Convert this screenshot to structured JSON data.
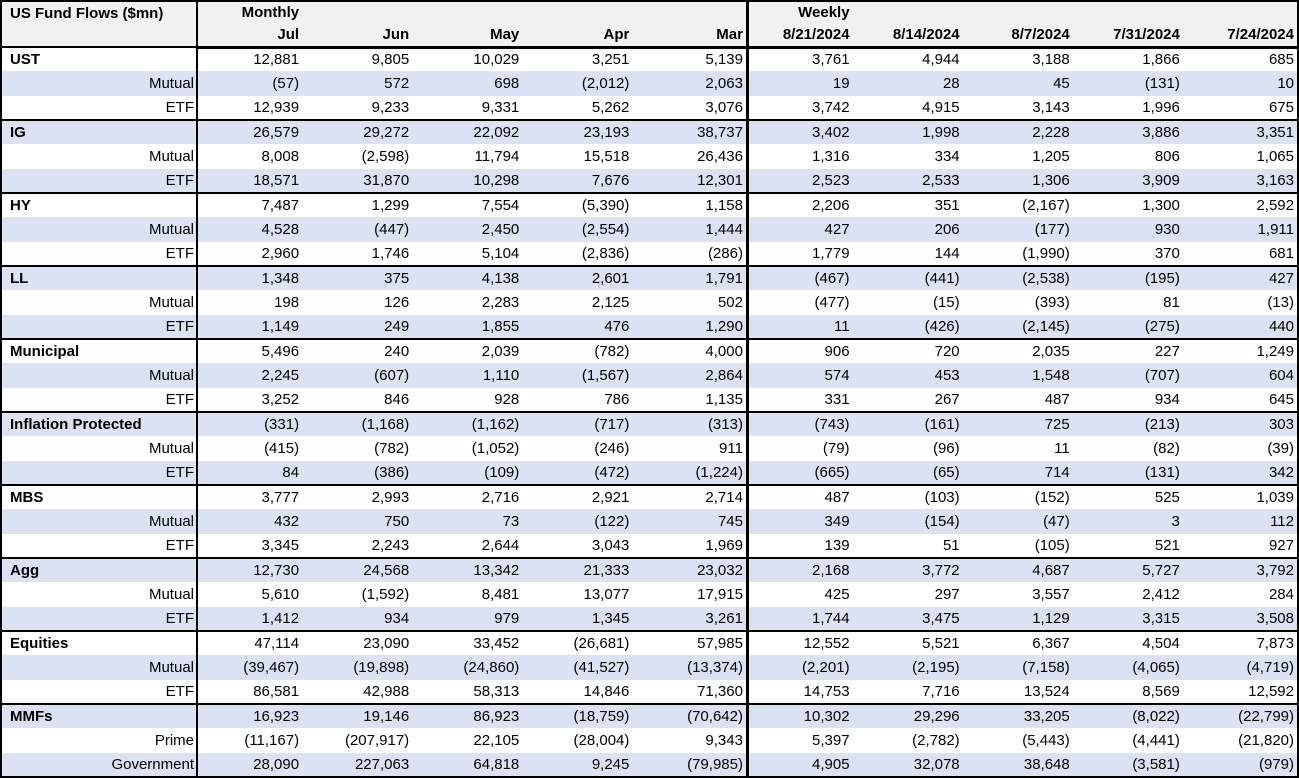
{
  "chart_data": {
    "type": "table",
    "title": "US Fund Flows ($mn)",
    "sections": [
      {
        "label": "Monthly",
        "columns": [
          "Jul",
          "Jun",
          "May",
          "Apr",
          "Mar"
        ]
      },
      {
        "label": "Weekly",
        "columns": [
          "8/21/2024",
          "8/14/2024",
          "8/7/2024",
          "7/31/2024",
          "7/24/2024"
        ]
      }
    ],
    "groups": [
      {
        "name": "UST",
        "rows": [
          {
            "label": "UST",
            "is_group_header": true,
            "monthly": [
              "12,881",
              "9,805",
              "10,029",
              "3,251",
              "5,139"
            ],
            "weekly": [
              "3,761",
              "4,944",
              "3,188",
              "1,866",
              "685"
            ]
          },
          {
            "label": "Mutual",
            "monthly": [
              "(57)",
              "572",
              "698",
              "(2,012)",
              "2,063"
            ],
            "weekly": [
              "19",
              "28",
              "45",
              "(131)",
              "10"
            ]
          },
          {
            "label": "ETF",
            "monthly": [
              "12,939",
              "9,233",
              "9,331",
              "5,262",
              "3,076"
            ],
            "weekly": [
              "3,742",
              "4,915",
              "3,143",
              "1,996",
              "675"
            ]
          }
        ]
      },
      {
        "name": "IG",
        "rows": [
          {
            "label": "IG",
            "is_group_header": true,
            "monthly": [
              "26,579",
              "29,272",
              "22,092",
              "23,193",
              "38,737"
            ],
            "weekly": [
              "3,402",
              "1,998",
              "2,228",
              "3,886",
              "3,351"
            ]
          },
          {
            "label": "Mutual",
            "monthly": [
              "8,008",
              "(2,598)",
              "11,794",
              "15,518",
              "26,436"
            ],
            "weekly": [
              "1,316",
              "334",
              "1,205",
              "806",
              "1,065"
            ]
          },
          {
            "label": "ETF",
            "monthly": [
              "18,571",
              "31,870",
              "10,298",
              "7,676",
              "12,301"
            ],
            "weekly": [
              "2,523",
              "2,533",
              "1,306",
              "3,909",
              "3,163"
            ]
          }
        ]
      },
      {
        "name": "HY",
        "rows": [
          {
            "label": "HY",
            "is_group_header": true,
            "monthly": [
              "7,487",
              "1,299",
              "7,554",
              "(5,390)",
              "1,158"
            ],
            "weekly": [
              "2,206",
              "351",
              "(2,167)",
              "1,300",
              "2,592"
            ]
          },
          {
            "label": "Mutual",
            "monthly": [
              "4,528",
              "(447)",
              "2,450",
              "(2,554)",
              "1,444"
            ],
            "weekly": [
              "427",
              "206",
              "(177)",
              "930",
              "1,911"
            ]
          },
          {
            "label": "ETF",
            "monthly": [
              "2,960",
              "1,746",
              "5,104",
              "(2,836)",
              "(286)"
            ],
            "weekly": [
              "1,779",
              "144",
              "(1,990)",
              "370",
              "681"
            ]
          }
        ]
      },
      {
        "name": "LL",
        "rows": [
          {
            "label": "LL",
            "is_group_header": true,
            "monthly": [
              "1,348",
              "375",
              "4,138",
              "2,601",
              "1,791"
            ],
            "weekly": [
              "(467)",
              "(441)",
              "(2,538)",
              "(195)",
              "427"
            ]
          },
          {
            "label": "Mutual",
            "monthly": [
              "198",
              "126",
              "2,283",
              "2,125",
              "502"
            ],
            "weekly": [
              "(477)",
              "(15)",
              "(393)",
              "81",
              "(13)"
            ]
          },
          {
            "label": "ETF",
            "monthly": [
              "1,149",
              "249",
              "1,855",
              "476",
              "1,290"
            ],
            "weekly": [
              "11",
              "(426)",
              "(2,145)",
              "(275)",
              "440"
            ]
          }
        ]
      },
      {
        "name": "Municipal",
        "rows": [
          {
            "label": "Municipal",
            "is_group_header": true,
            "monthly": [
              "5,496",
              "240",
              "2,039",
              "(782)",
              "4,000"
            ],
            "weekly": [
              "906",
              "720",
              "2,035",
              "227",
              "1,249"
            ]
          },
          {
            "label": "Mutual",
            "monthly": [
              "2,245",
              "(607)",
              "1,110",
              "(1,567)",
              "2,864"
            ],
            "weekly": [
              "574",
              "453",
              "1,548",
              "(707)",
              "604"
            ]
          },
          {
            "label": "ETF",
            "monthly": [
              "3,252",
              "846",
              "928",
              "786",
              "1,135"
            ],
            "weekly": [
              "331",
              "267",
              "487",
              "934",
              "645"
            ]
          }
        ]
      },
      {
        "name": "Inflation Protected",
        "rows": [
          {
            "label": "Inflation Protected",
            "is_group_header": true,
            "monthly": [
              "(331)",
              "(1,168)",
              "(1,162)",
              "(717)",
              "(313)"
            ],
            "weekly": [
              "(743)",
              "(161)",
              "725",
              "(213)",
              "303"
            ]
          },
          {
            "label": "Mutual",
            "monthly": [
              "(415)",
              "(782)",
              "(1,052)",
              "(246)",
              "911"
            ],
            "weekly": [
              "(79)",
              "(96)",
              "11",
              "(82)",
              "(39)"
            ]
          },
          {
            "label": "ETF",
            "monthly": [
              "84",
              "(386)",
              "(109)",
              "(472)",
              "(1,224)"
            ],
            "weekly": [
              "(665)",
              "(65)",
              "714",
              "(131)",
              "342"
            ]
          }
        ]
      },
      {
        "name": "MBS",
        "rows": [
          {
            "label": "MBS",
            "is_group_header": true,
            "monthly": [
              "3,777",
              "2,993",
              "2,716",
              "2,921",
              "2,714"
            ],
            "weekly": [
              "487",
              "(103)",
              "(152)",
              "525",
              "1,039"
            ]
          },
          {
            "label": "Mutual",
            "monthly": [
              "432",
              "750",
              "73",
              "(122)",
              "745"
            ],
            "weekly": [
              "349",
              "(154)",
              "(47)",
              "3",
              "112"
            ]
          },
          {
            "label": "ETF",
            "monthly": [
              "3,345",
              "2,243",
              "2,644",
              "3,043",
              "1,969"
            ],
            "weekly": [
              "139",
              "51",
              "(105)",
              "521",
              "927"
            ]
          }
        ]
      },
      {
        "name": "Agg",
        "rows": [
          {
            "label": "Agg",
            "is_group_header": true,
            "monthly": [
              "12,730",
              "24,568",
              "13,342",
              "21,333",
              "23,032"
            ],
            "weekly": [
              "2,168",
              "3,772",
              "4,687",
              "5,727",
              "3,792"
            ]
          },
          {
            "label": "Mutual",
            "monthly": [
              "5,610",
              "(1,592)",
              "8,481",
              "13,077",
              "17,915"
            ],
            "weekly": [
              "425",
              "297",
              "3,557",
              "2,412",
              "284"
            ]
          },
          {
            "label": "ETF",
            "monthly": [
              "1,412",
              "934",
              "979",
              "1,345",
              "3,261"
            ],
            "weekly": [
              "1,744",
              "3,475",
              "1,129",
              "3,315",
              "3,508"
            ]
          }
        ]
      },
      {
        "name": "Equities",
        "rows": [
          {
            "label": "Equities",
            "is_group_header": true,
            "monthly": [
              "47,114",
              "23,090",
              "33,452",
              "(26,681)",
              "57,985"
            ],
            "weekly": [
              "12,552",
              "5,521",
              "6,367",
              "4,504",
              "7,873"
            ]
          },
          {
            "label": "Mutual",
            "monthly": [
              "(39,467)",
              "(19,898)",
              "(24,860)",
              "(41,527)",
              "(13,374)"
            ],
            "weekly": [
              "(2,201)",
              "(2,195)",
              "(7,158)",
              "(4,065)",
              "(4,719)"
            ]
          },
          {
            "label": "ETF",
            "monthly": [
              "86,581",
              "42,988",
              "58,313",
              "14,846",
              "71,360"
            ],
            "weekly": [
              "14,753",
              "7,716",
              "13,524",
              "8,569",
              "12,592"
            ]
          }
        ]
      },
      {
        "name": "MMFs",
        "rows": [
          {
            "label": "MMFs",
            "is_group_header": true,
            "monthly": [
              "16,923",
              "19,146",
              "86,923",
              "(18,759)",
              "(70,642)"
            ],
            "weekly": [
              "10,302",
              "29,296",
              "33,205",
              "(8,022)",
              "(22,799)"
            ]
          },
          {
            "label": "Prime",
            "monthly": [
              "(11,167)",
              "(207,917)",
              "22,105",
              "(28,004)",
              "9,343"
            ],
            "weekly": [
              "5,397",
              "(2,782)",
              "(5,443)",
              "(4,441)",
              "(21,820)"
            ]
          },
          {
            "label": "Government",
            "monthly": [
              "28,090",
              "227,063",
              "64,818",
              "9,245",
              "(79,985)"
            ],
            "weekly": [
              "4,905",
              "32,078",
              "38,648",
              "(3,581)",
              "(979)"
            ]
          }
        ]
      }
    ],
    "styles": {
      "stripe_color": "#dbe2f3",
      "header_bg": "#f1f1f1",
      "border_color": "#000000",
      "text_color": "#000000"
    }
  }
}
